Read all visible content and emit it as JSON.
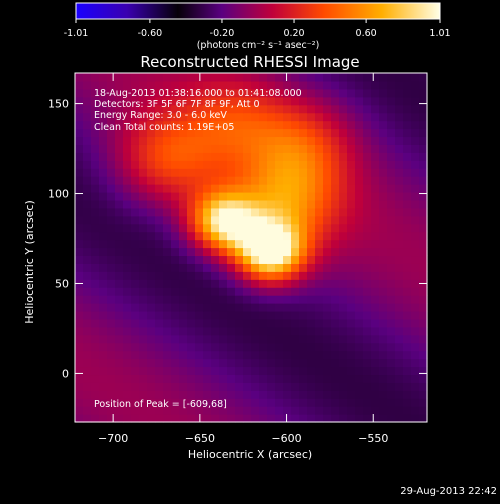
{
  "chart_data": {
    "type": "heatmap",
    "title": "Reconstructed RHESSI Image",
    "xlabel": "Heliocentric X (arcsec)",
    "ylabel": "Heliocentric Y (arcsec)",
    "xlim": [
      -722,
      -519
    ],
    "ylim": [
      -27,
      167
    ],
    "x_ticks": [
      -700,
      -650,
      -600,
      -550
    ],
    "y_ticks": [
      0,
      50,
      100,
      150
    ],
    "colorbar": {
      "range": [
        -1.01,
        1.01
      ],
      "ticks": [
        -1.01,
        -0.6,
        -0.2,
        0.2,
        0.6,
        1.01
      ],
      "tick_labels": [
        "-1.01",
        "-0.60",
        "-0.20",
        "0.20",
        "0.60",
        "1.01"
      ],
      "unit_label": "(photons cm⁻² s⁻¹ asec⁻²)",
      "colormap": [
        "#1a00ff",
        "#3a00b0",
        "#000000",
        "#5a0080",
        "#c0003a",
        "#ff4a00",
        "#ffae00",
        "#ffffe6"
      ]
    },
    "annotations": [
      "18-Aug-2013 01:38:16.000 to 01:41:08.000",
      "Detectors: 3F 5F 6F 7F 8F 9F, Att 0",
      "Energy Range: 3.0 - 6.0 keV",
      "Clean    Total counts: 1.19E+05"
    ],
    "peak_label": "Position of Peak = [-609,68]",
    "peak": [
      -609,
      68
    ],
    "sources": [
      {
        "x": -609,
        "y": 68,
        "value": 1.0
      },
      {
        "x": -636,
        "y": 85,
        "value": 0.88
      },
      {
        "x": -600,
        "y": 95,
        "value": 0.55
      },
      {
        "x": -668,
        "y": 120,
        "value": 0.45
      },
      {
        "x": -592,
        "y": 126,
        "value": 0.4
      },
      {
        "x": -630,
        "y": 140,
        "value": 0.35
      }
    ]
  },
  "footer": {
    "timestamp": "29-Aug-2013 22:42"
  }
}
